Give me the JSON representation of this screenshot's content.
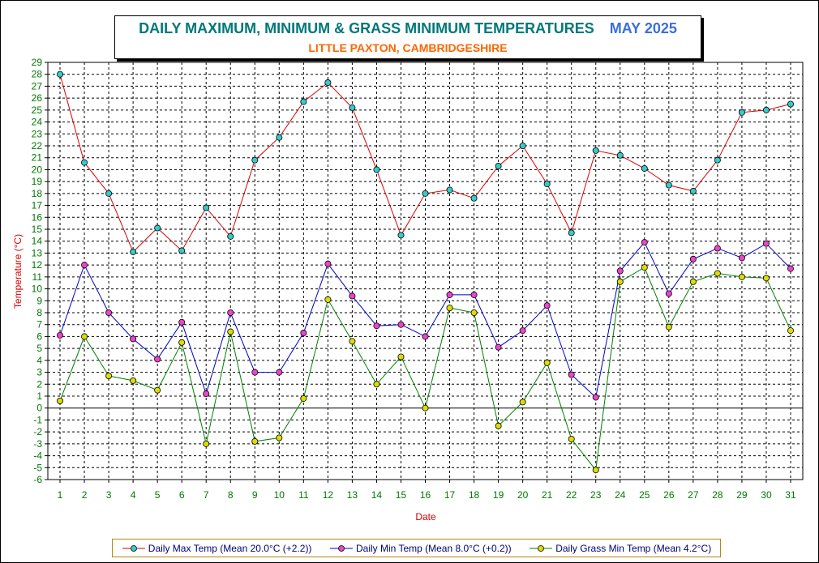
{
  "header": {
    "title": "DAILY MAXIMUM, MINIMUM & GRASS MINIMUM TEMPERATURES",
    "month": "MAY 2025",
    "subtitle": "LITTLE PAXTON, CAMBRIDGESHIRE"
  },
  "colors": {
    "max_line": "#e00000",
    "max_marker": "#33cccc",
    "min_line": "#0000cc",
    "min_marker": "#ee44cc",
    "grass_line": "#008000",
    "grass_marker": "#dddd00",
    "grid": "#000000",
    "tick_text": "#007800",
    "axis_title": "#e00000"
  },
  "chart_data": {
    "type": "line",
    "title": "DAILY MAXIMUM, MINIMUM & GRASS MINIMUM TEMPERATURES",
    "xlabel": "Date",
    "ylabel": "Temperature (°C)",
    "ylim": [
      -6,
      29
    ],
    "grid": true,
    "legend_position": "bottom",
    "x": [
      1,
      2,
      3,
      4,
      5,
      6,
      7,
      8,
      9,
      10,
      11,
      12,
      13,
      14,
      15,
      16,
      17,
      18,
      19,
      20,
      21,
      22,
      23,
      24,
      25,
      26,
      27,
      28,
      29,
      30,
      31
    ],
    "y_ticks": [
      29,
      28,
      27,
      26,
      25,
      24,
      23,
      22,
      21,
      20,
      19,
      18,
      17,
      16,
      15,
      14,
      13,
      12,
      11,
      10,
      9,
      8,
      7,
      6,
      5,
      4,
      3,
      2,
      1,
      0,
      -1,
      -2,
      -3,
      -4,
      -5,
      -6
    ],
    "series": [
      {
        "name": "Daily Max Temp (Mean 20.0°C (+2.2))",
        "values": [
          28.0,
          20.6,
          18.0,
          13.1,
          15.1,
          13.2,
          16.8,
          14.4,
          20.8,
          22.7,
          25.7,
          27.3,
          25.2,
          20.0,
          14.5,
          18.0,
          18.3,
          17.6,
          20.3,
          22.0,
          18.8,
          14.7,
          21.6,
          21.2,
          20.1,
          18.7,
          18.2,
          20.8,
          24.8,
          25.0,
          25.5
        ]
      },
      {
        "name": "Daily Min Temp (Mean 8.0°C (+0.2))",
        "values": [
          6.1,
          12.0,
          8.0,
          5.8,
          4.1,
          7.2,
          1.2,
          8.0,
          3.0,
          3.0,
          6.3,
          12.1,
          9.4,
          6.9,
          7.0,
          6.0,
          9.5,
          9.5,
          5.1,
          6.5,
          8.6,
          2.8,
          0.9,
          11.5,
          13.9,
          9.6,
          12.5,
          13.4,
          12.6,
          13.8,
          11.7
        ]
      },
      {
        "name": "Daily Grass Min Temp (Mean 4.2°C)",
        "values": [
          0.6,
          6.0,
          2.7,
          2.3,
          1.5,
          5.5,
          -3.0,
          6.4,
          -2.8,
          -2.5,
          0.8,
          9.1,
          5.6,
          2.0,
          4.3,
          0.0,
          8.4,
          8.0,
          -1.5,
          0.5,
          3.8,
          -2.6,
          -5.2,
          10.6,
          11.8,
          6.8,
          10.6,
          11.3,
          11.0,
          10.9,
          6.5
        ]
      }
    ]
  }
}
